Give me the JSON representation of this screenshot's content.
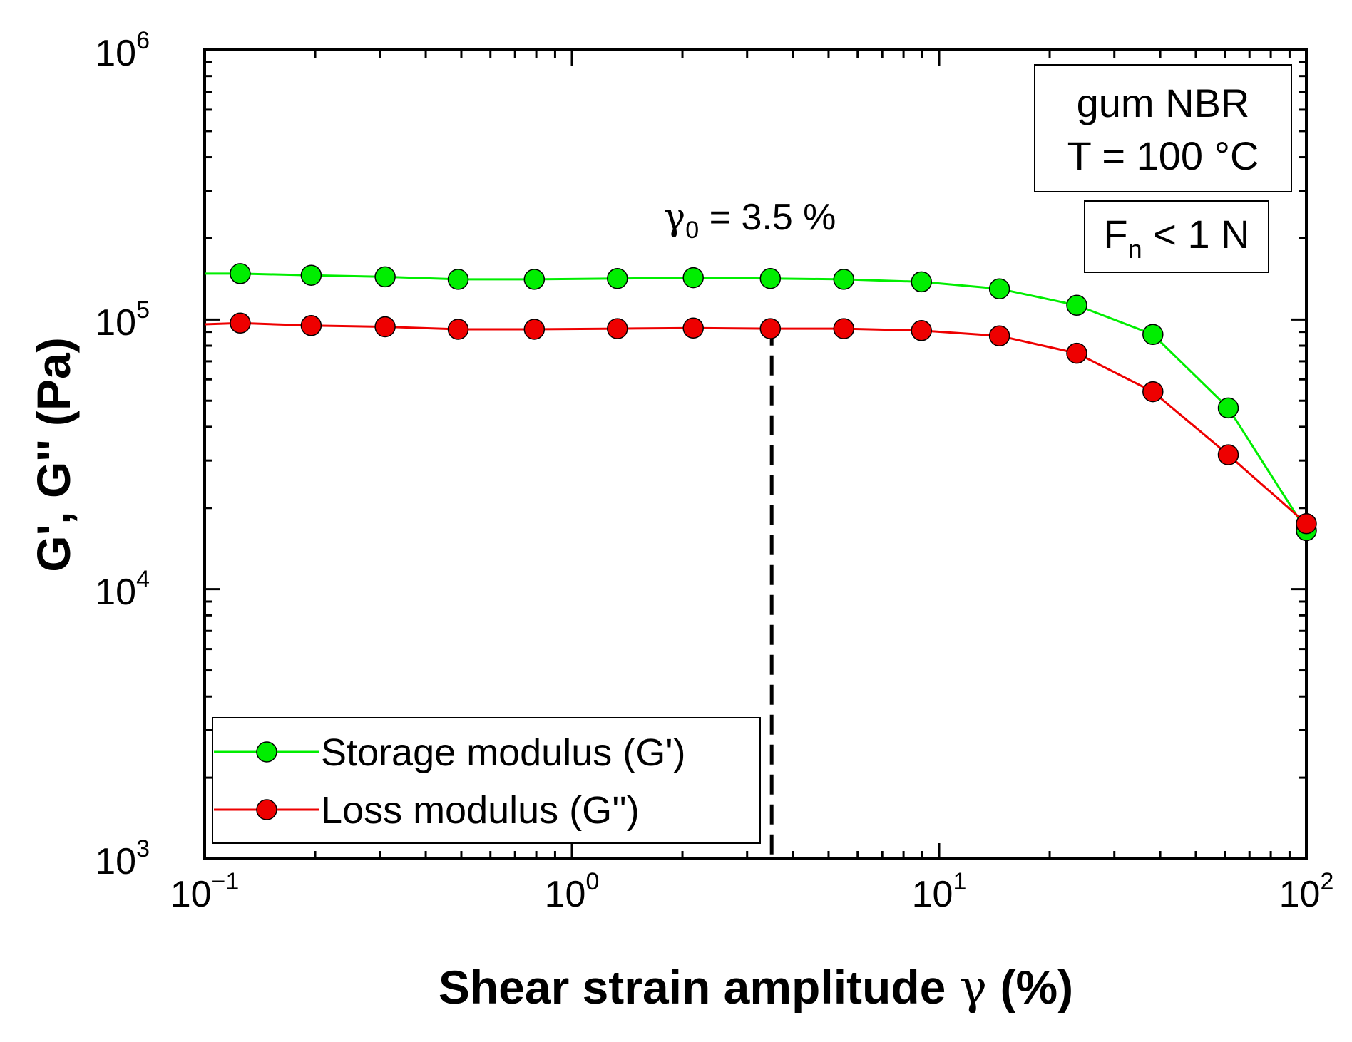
{
  "chart_data": {
    "type": "line",
    "title": "",
    "xlabel": "Shear strain amplitude",
    "xlabel_symbol": "γ",
    "xlabel_unit": "(%)",
    "ylabel": "G', G'' (Pa)",
    "xscale": "log",
    "yscale": "log",
    "xlim": [
      0.1,
      100
    ],
    "ylim": [
      1000,
      1000000
    ],
    "x_ticks": [
      {
        "base": "10",
        "exp": "−1",
        "value": 0.1
      },
      {
        "base": "10",
        "exp": "0",
        "value": 1
      },
      {
        "base": "10",
        "exp": "1",
        "value": 10
      },
      {
        "base": "10",
        "exp": "2",
        "value": 100
      }
    ],
    "y_ticks": [
      {
        "base": "10",
        "exp": "3",
        "value": 1000
      },
      {
        "base": "10",
        "exp": "4",
        "value": 10000
      },
      {
        "base": "10",
        "exp": "5",
        "value": 100000
      },
      {
        "base": "10",
        "exp": "6",
        "value": 1000000
      }
    ],
    "legend_position": "bottom-left",
    "series": [
      {
        "name": "Storage modulus (G')",
        "color": "#00ee00",
        "line_start": [
          0.1,
          148000
        ],
        "x": [
          0.125,
          0.195,
          0.31,
          0.49,
          0.79,
          1.33,
          2.14,
          3.47,
          5.5,
          8.95,
          14.6,
          23.7,
          38.2,
          61.3,
          100
        ],
        "y": [
          148000,
          146000,
          144000,
          141000,
          141000,
          142000,
          143000,
          142000,
          141000,
          138000,
          130000,
          113000,
          88000,
          47000,
          16500
        ]
      },
      {
        "name": "Loss modulus (G'')",
        "color": "#ee0000",
        "line_start": [
          0.1,
          96000
        ],
        "x": [
          0.125,
          0.195,
          0.31,
          0.49,
          0.79,
          1.33,
          2.14,
          3.47,
          5.5,
          8.95,
          14.6,
          23.7,
          38.2,
          61.3,
          100
        ],
        "y": [
          97000,
          95000,
          94000,
          92000,
          92000,
          92500,
          93000,
          92500,
          92500,
          91000,
          87000,
          75000,
          54000,
          31500,
          17500
        ]
      }
    ],
    "annotations": {
      "vline_x": 3.5,
      "vline_label_symbol": "γ",
      "vline_label_sub": "0",
      "vline_label_text": " = 3.5 %",
      "box1_line1": "gum NBR",
      "box1_line2": "T = 100 °C",
      "box2_main": "F",
      "box2_sub": "n",
      "box2_rest": " < 1 N"
    }
  }
}
